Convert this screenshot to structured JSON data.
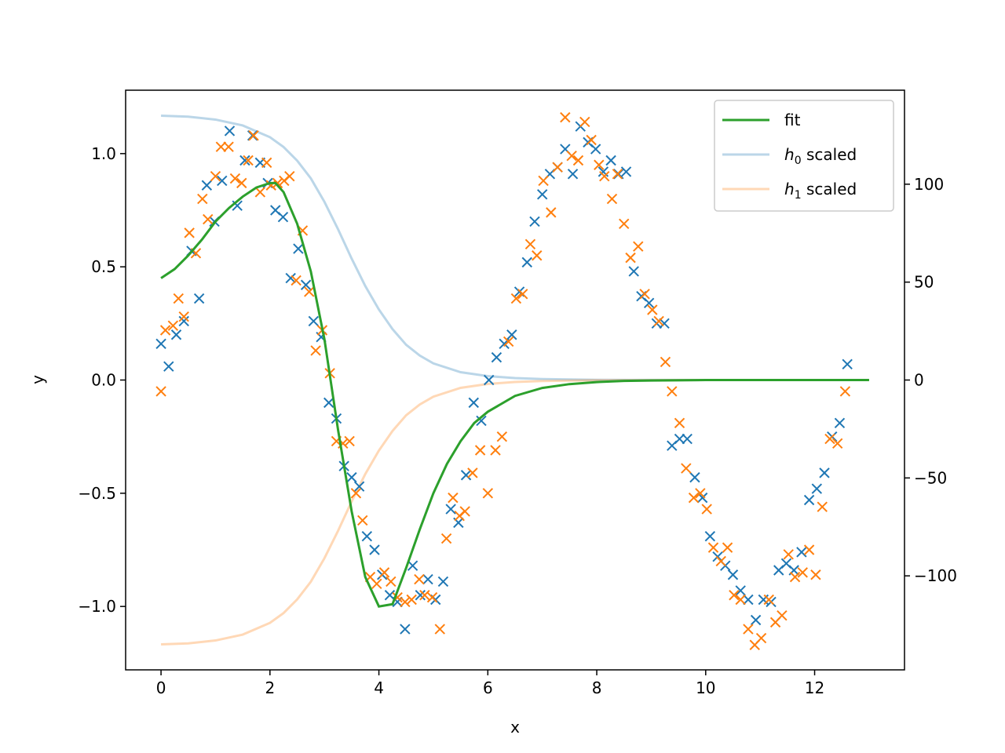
{
  "chart_data": {
    "type": "scatter",
    "xlabel": "x",
    "ylabel": "y",
    "xlim": [
      -0.65,
      13.65
    ],
    "ylim": [
      -1.28,
      1.28
    ],
    "y2lim": [
      -148,
      148
    ],
    "xticks": [
      0,
      2,
      4,
      6,
      8,
      10,
      12
    ],
    "xtick_labels": [
      "0",
      "2",
      "4",
      "6",
      "8",
      "10",
      "12"
    ],
    "yticks": [
      -1.0,
      -0.5,
      0.0,
      0.5,
      1.0
    ],
    "ytick_labels": [
      "−1.0",
      "−0.5",
      "0.0",
      "0.5",
      "1.0"
    ],
    "y2ticks": [
      -100,
      -50,
      0,
      50,
      100
    ],
    "y2tick_labels": [
      "−100",
      "−50",
      "0",
      "50",
      "100"
    ],
    "grid": false,
    "legend_position": "top-right",
    "legend": [
      {
        "label": "fit",
        "color": "#2ca02c",
        "alpha": 1
      },
      {
        "label_main": "h",
        "label_sub": "0",
        "label_rest": " scaled",
        "color": "#1f77b4",
        "alpha": 0.3
      },
      {
        "label_main": "h",
        "label_sub": "1",
        "label_rest": " scaled",
        "color": "#ff7f0e",
        "alpha": 0.3
      }
    ],
    "colors": {
      "series_a": "#1f77b4",
      "series_b": "#ff7f0e",
      "fit": "#2ca02c"
    },
    "scatter_series": [
      {
        "color": "#1f77b4",
        "x": [
          0.0,
          0.14,
          0.28,
          0.42,
          0.56,
          0.7,
          0.84,
          0.98,
          1.12,
          1.26,
          1.4,
          1.54,
          1.68,
          1.82,
          1.96,
          2.1,
          2.24,
          2.38,
          2.52,
          2.66,
          2.8,
          2.94,
          3.08,
          3.22,
          3.36,
          3.5,
          3.64,
          3.78,
          3.92,
          4.06,
          4.2,
          4.34,
          4.48,
          4.62,
          4.76,
          4.9,
          5.04,
          5.18,
          5.32,
          5.46,
          5.6,
          5.74,
          5.88,
          6.02,
          6.16,
          6.3,
          6.44,
          6.58,
          6.72,
          6.86,
          7.0,
          7.14,
          7.28,
          7.42,
          7.56,
          7.7,
          7.84,
          7.98,
          8.12,
          8.26,
          8.4,
          8.54,
          8.68,
          8.82,
          8.96,
          9.1,
          9.24,
          9.38,
          9.52,
          9.66,
          9.8,
          9.94,
          10.08,
          10.22,
          10.36,
          10.5,
          10.64,
          10.78,
          10.92,
          11.06,
          11.2,
          11.34,
          11.48,
          11.62,
          11.76,
          11.9,
          12.04,
          12.18,
          12.32,
          12.46,
          12.6
        ],
        "y": [
          0.16,
          0.06,
          0.2,
          0.26,
          0.57,
          0.36,
          0.86,
          0.7,
          0.88,
          1.1,
          0.77,
          0.97,
          1.08,
          0.96,
          0.87,
          0.75,
          0.72,
          0.45,
          0.58,
          0.42,
          0.26,
          0.19,
          -0.1,
          -0.17,
          -0.38,
          -0.43,
          -0.47,
          -0.69,
          -0.75,
          -0.86,
          -0.95,
          -0.98,
          -1.1,
          -0.82,
          -0.95,
          -0.88,
          -0.97,
          -0.89,
          -0.57,
          -0.63,
          -0.42,
          -0.1,
          -0.18,
          0.0,
          0.1,
          0.16,
          0.2,
          0.39,
          0.52,
          0.7,
          0.82,
          0.91,
          0.94,
          1.02,
          0.91,
          1.12,
          1.05,
          1.02,
          0.92,
          0.97,
          0.91,
          0.92,
          0.48,
          0.37,
          0.34,
          0.25,
          0.25,
          -0.29,
          -0.26,
          -0.26,
          -0.43,
          -0.52,
          -0.69,
          -0.78,
          -0.82,
          -0.86,
          -0.93,
          -0.97,
          -1.06,
          -0.97,
          -0.98,
          -0.84,
          -0.81,
          -0.84,
          -0.76,
          -0.53,
          -0.48,
          -0.41,
          -0.25,
          -0.19,
          0.07
        ]
      },
      {
        "color": "#ff7f0e",
        "x": [
          0.0,
          0.08,
          0.22,
          0.32,
          0.42,
          0.52,
          0.64,
          0.76,
          0.86,
          1.0,
          1.1,
          1.24,
          1.36,
          1.48,
          1.6,
          1.7,
          1.82,
          1.94,
          2.02,
          2.14,
          2.26,
          2.36,
          2.48,
          2.6,
          2.72,
          2.84,
          2.96,
          3.1,
          3.22,
          3.34,
          3.46,
          3.58,
          3.7,
          3.84,
          3.96,
          4.1,
          4.22,
          4.34,
          4.48,
          4.6,
          4.74,
          4.84,
          4.98,
          5.12,
          5.24,
          5.36,
          5.48,
          5.58,
          5.72,
          5.86,
          6.0,
          6.14,
          6.26,
          6.38,
          6.52,
          6.64,
          6.78,
          6.9,
          7.02,
          7.16,
          7.28,
          7.42,
          7.54,
          7.66,
          7.78,
          7.9,
          8.04,
          8.14,
          8.28,
          8.38,
          8.5,
          8.62,
          8.76,
          8.88,
          9.02,
          9.14,
          9.26,
          9.38,
          9.52,
          9.64,
          9.78,
          9.9,
          10.02,
          10.14,
          10.28,
          10.4,
          10.52,
          10.64,
          10.78,
          10.9,
          11.02,
          11.16,
          11.28,
          11.4,
          11.52,
          11.64,
          11.78,
          11.9,
          12.02,
          12.14,
          12.28,
          12.42,
          12.56
        ],
        "y": [
          -0.05,
          0.22,
          0.24,
          0.36,
          0.28,
          0.65,
          0.56,
          0.8,
          0.71,
          0.9,
          1.03,
          1.03,
          0.89,
          0.87,
          0.97,
          1.08,
          0.83,
          0.96,
          0.86,
          0.87,
          0.88,
          0.9,
          0.44,
          0.66,
          0.39,
          0.13,
          0.22,
          0.03,
          -0.27,
          -0.28,
          -0.27,
          -0.5,
          -0.62,
          -0.87,
          -0.9,
          -0.85,
          -0.89,
          -0.96,
          -0.98,
          -0.97,
          -0.88,
          -0.95,
          -0.96,
          -1.1,
          -0.7,
          -0.52,
          -0.6,
          -0.58,
          -0.41,
          -0.31,
          -0.5,
          -0.31,
          -0.25,
          0.17,
          0.36,
          0.38,
          0.6,
          0.55,
          0.88,
          0.74,
          0.94,
          1.16,
          0.99,
          0.97,
          1.14,
          1.06,
          0.95,
          0.9,
          0.8,
          0.91,
          0.69,
          0.54,
          0.59,
          0.38,
          0.31,
          0.26,
          0.08,
          -0.05,
          -0.19,
          -0.39,
          -0.52,
          -0.5,
          -0.57,
          -0.74,
          -0.8,
          -0.74,
          -0.95,
          -0.97,
          -1.1,
          -1.17,
          -1.14,
          -0.97,
          -1.07,
          -1.04,
          -0.77,
          -0.87,
          -0.85,
          -0.75,
          -0.86,
          -0.56,
          -0.26,
          -0.28,
          -0.05
        ]
      }
    ],
    "line_series": [
      {
        "name": "fit",
        "axis": "left",
        "x": [
          0,
          0.25,
          0.5,
          0.75,
          1.0,
          1.25,
          1.5,
          1.75,
          2.0,
          2.1,
          2.25,
          2.5,
          2.75,
          3.0,
          3.25,
          3.5,
          3.75,
          4.0,
          4.25,
          4.5,
          4.75,
          5.0,
          5.25,
          5.5,
          5.75,
          6.0,
          6.5,
          7.0,
          7.5,
          8.0,
          8.5,
          9.0,
          10.0,
          11.0,
          12.0,
          13.0
        ],
        "y": [
          0.45,
          0.49,
          0.55,
          0.62,
          0.7,
          0.76,
          0.81,
          0.85,
          0.87,
          0.87,
          0.83,
          0.69,
          0.48,
          0.18,
          -0.22,
          -0.58,
          -0.87,
          -1.0,
          -0.99,
          -0.83,
          -0.66,
          -0.5,
          -0.37,
          -0.27,
          -0.19,
          -0.14,
          -0.07,
          -0.035,
          -0.018,
          -0.009,
          -0.004,
          -0.002,
          0,
          0,
          0,
          0
        ]
      },
      {
        "name": "h0",
        "axis": "right",
        "x": [
          0,
          0.5,
          1.0,
          1.5,
          2.0,
          2.25,
          2.5,
          2.75,
          3.0,
          3.25,
          3.5,
          3.75,
          4.0,
          4.25,
          4.5,
          4.75,
          5.0,
          5.5,
          6.0,
          6.5,
          7.0,
          8.0,
          9.0,
          10.0,
          11.0,
          12.0,
          13.0
        ],
        "y": [
          135,
          134.5,
          133,
          130,
          124,
          119,
          112,
          103,
          91,
          77,
          62,
          48,
          36,
          26,
          18,
          12.5,
          8.5,
          4,
          2,
          1,
          0.5,
          0.1,
          0.05,
          0,
          0,
          0,
          0
        ]
      },
      {
        "name": "h1",
        "axis": "right",
        "x": [
          0,
          0.5,
          1.0,
          1.5,
          2.0,
          2.25,
          2.5,
          2.75,
          3.0,
          3.25,
          3.5,
          3.75,
          4.0,
          4.25,
          4.5,
          4.75,
          5.0,
          5.5,
          6.0,
          6.5,
          7.0,
          8.0,
          9.0,
          10.0,
          11.0,
          12.0,
          13.0
        ],
        "y": [
          -135,
          -134.5,
          -133,
          -130,
          -124,
          -119,
          -112,
          -103,
          -91,
          -77,
          -62,
          -48,
          -36,
          -26,
          -18,
          -12.5,
          -8.5,
          -4,
          -2,
          -1,
          -0.5,
          -0.1,
          -0.05,
          0,
          0,
          0,
          0
        ]
      }
    ]
  }
}
